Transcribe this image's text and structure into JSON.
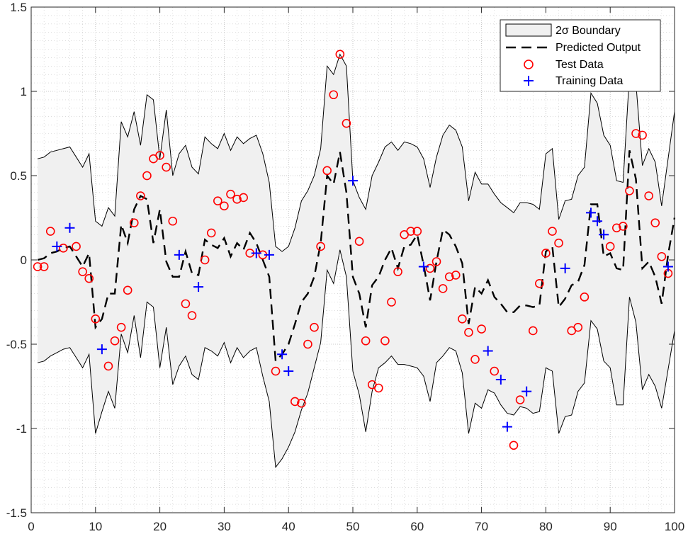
{
  "chart_data": {
    "type": "line",
    "title": "",
    "xlabel": "",
    "ylabel": "",
    "xlim": [
      0,
      100
    ],
    "ylim": [
      -1.5,
      1.5
    ],
    "x_ticks": [
      "0",
      "10",
      "20",
      "30",
      "40",
      "50",
      "60",
      "70",
      "80",
      "90",
      "100"
    ],
    "y_ticks": [
      "1.5",
      "1",
      "0.5",
      "0",
      "-0.5",
      "-1",
      "-1.5"
    ],
    "grid": "major and minor, dotted",
    "legend_position": "top-right",
    "legend": [
      {
        "label": "2σ Boundary"
      },
      {
        "label": "Predicted Output"
      },
      {
        "label": "Test Data"
      },
      {
        "label": "Training Data"
      }
    ],
    "colors": {
      "band_fill": "#f0f0f0",
      "band_edge": "#000000",
      "predicted": "#000000",
      "test": "#ff0000",
      "training": "#0000ff",
      "grid": "#c8c8c8"
    },
    "band": {
      "x": [
        1,
        2,
        3,
        4,
        5,
        6,
        7,
        8,
        9,
        10,
        11,
        12,
        13,
        14,
        15,
        16,
        17,
        18,
        19,
        20,
        21,
        22,
        23,
        24,
        25,
        26,
        27,
        28,
        29,
        30,
        31,
        32,
        33,
        34,
        35,
        36,
        37,
        38,
        39,
        40,
        41,
        42,
        43,
        44,
        45,
        46,
        47,
        48,
        49,
        50,
        51,
        52,
        53,
        54,
        55,
        56,
        57,
        58,
        59,
        60,
        61,
        62,
        63,
        64,
        65,
        66,
        67,
        68,
        69,
        70,
        71,
        72,
        73,
        74,
        75,
        76,
        77,
        78,
        79,
        80,
        81,
        82,
        83,
        84,
        85,
        86,
        87,
        88,
        89,
        90,
        91,
        92,
        93,
        94,
        95,
        96,
        97,
        98,
        99,
        100
      ],
      "upper": [
        0.6,
        0.61,
        0.64,
        0.65,
        0.66,
        0.67,
        0.61,
        0.55,
        0.63,
        0.23,
        0.2,
        0.31,
        0.26,
        0.82,
        0.73,
        0.88,
        0.68,
        0.98,
        0.95,
        0.6,
        0.89,
        0.5,
        0.63,
        0.68,
        0.55,
        0.51,
        0.73,
        0.69,
        0.66,
        0.75,
        0.65,
        0.73,
        0.69,
        0.72,
        0.74,
        0.63,
        0.46,
        0.08,
        0.05,
        0.08,
        0.19,
        0.35,
        0.41,
        0.5,
        0.66,
        1.15,
        1.1,
        1.22,
        1.15,
        0.47,
        0.37,
        0.3,
        0.5,
        0.58,
        0.67,
        0.7,
        0.65,
        0.7,
        0.69,
        0.67,
        0.6,
        0.43,
        0.61,
        0.74,
        0.8,
        0.77,
        0.67,
        0.35,
        0.52,
        0.45,
        0.45,
        0.39,
        0.34,
        0.31,
        0.28,
        0.34,
        0.34,
        0.33,
        0.3,
        0.63,
        0.66,
        0.24,
        0.35,
        0.36,
        0.5,
        0.55,
        0.99,
        0.93,
        0.74,
        0.68,
        0.47,
        0.46,
        1.1,
        1.05,
        0.56,
        0.66,
        0.58,
        0.32,
        0.6,
        0.88
      ],
      "lower": [
        -0.61,
        -0.6,
        -0.57,
        -0.55,
        -0.53,
        -0.52,
        -0.58,
        -0.64,
        -0.56,
        -1.03,
        -0.9,
        -0.78,
        -0.88,
        -0.44,
        -0.55,
        -0.33,
        -0.58,
        -0.25,
        -0.28,
        -0.64,
        -0.4,
        -0.74,
        -0.63,
        -0.57,
        -0.68,
        -0.71,
        -0.52,
        -0.54,
        -0.57,
        -0.49,
        -0.61,
        -0.52,
        -0.58,
        -0.54,
        -0.52,
        -0.69,
        -0.84,
        -1.23,
        -1.18,
        -1.11,
        -1.02,
        -0.89,
        -0.79,
        -0.64,
        -0.49,
        -0.06,
        -0.14,
        0.06,
        -0.1,
        -0.66,
        -0.8,
        -1.02,
        -0.78,
        -0.64,
        -0.61,
        -0.57,
        -0.62,
        -0.62,
        -0.63,
        -0.64,
        -0.69,
        -0.84,
        -0.61,
        -0.57,
        -0.52,
        -0.54,
        -0.67,
        -1.03,
        -0.85,
        -0.88,
        -0.77,
        -0.79,
        -0.86,
        -0.91,
        -0.92,
        -0.87,
        -0.88,
        -0.91,
        -0.9,
        -0.64,
        -0.66,
        -1.03,
        -0.93,
        -0.92,
        -0.78,
        -0.73,
        -0.36,
        -0.41,
        -0.6,
        -0.64,
        -0.86,
        -0.86,
        -0.22,
        -0.37,
        -0.77,
        -0.68,
        -0.75,
        -0.88,
        -0.65,
        -0.42
      ]
    },
    "series": [
      {
        "name": "Predicted Output",
        "x": [
          1,
          2,
          3,
          4,
          5,
          6,
          7,
          8,
          9,
          10,
          11,
          12,
          13,
          14,
          15,
          16,
          17,
          18,
          19,
          20,
          21,
          22,
          23,
          24,
          25,
          26,
          27,
          28,
          29,
          30,
          31,
          32,
          33,
          34,
          35,
          36,
          37,
          38,
          39,
          40,
          41,
          42,
          43,
          44,
          45,
          46,
          47,
          48,
          49,
          50,
          51,
          52,
          53,
          54,
          55,
          56,
          57,
          58,
          59,
          60,
          61,
          62,
          63,
          64,
          65,
          66,
          67,
          68,
          69,
          70,
          71,
          72,
          73,
          74,
          75,
          76,
          77,
          78,
          79,
          80,
          81,
          82,
          83,
          84,
          85,
          86,
          87,
          88,
          89,
          90,
          91,
          92,
          93,
          94,
          95,
          96,
          97,
          98,
          99,
          100
        ],
        "y": [
          0.0,
          0.01,
          0.04,
          0.05,
          0.07,
          0.08,
          0.02,
          -0.04,
          0.04,
          -0.4,
          -0.35,
          -0.2,
          -0.2,
          0.21,
          0.1,
          0.3,
          0.38,
          0.36,
          0.1,
          0.3,
          -0.01,
          -0.1,
          -0.1,
          0.05,
          -0.08,
          -0.09,
          0.12,
          0.09,
          0.07,
          0.13,
          0.02,
          0.1,
          0.06,
          0.16,
          0.1,
          0.0,
          -0.1,
          -0.6,
          -0.56,
          -0.5,
          -0.38,
          -0.25,
          -0.2,
          -0.1,
          0.1,
          0.5,
          0.45,
          0.64,
          0.4,
          -0.1,
          -0.2,
          -0.4,
          -0.15,
          -0.1,
          0.0,
          0.07,
          -0.05,
          0.08,
          0.09,
          0.15,
          -0.03,
          -0.24,
          -0.01,
          0.18,
          0.15,
          0.08,
          -0.02,
          -0.38,
          -0.16,
          -0.2,
          -0.12,
          -0.22,
          -0.26,
          -0.31,
          -0.31,
          -0.27,
          -0.27,
          -0.28,
          -0.27,
          0.05,
          0.08,
          -0.28,
          -0.23,
          -0.15,
          -0.13,
          -0.03,
          0.33,
          0.33,
          0.02,
          0.04,
          -0.05,
          -0.06,
          0.65,
          0.48,
          -0.05,
          -0.01,
          -0.1,
          -0.26,
          0.03,
          0.25
        ]
      },
      {
        "name": "Test Data",
        "x": [
          1,
          2,
          3,
          5,
          7,
          8,
          9,
          10,
          12,
          13,
          14,
          15,
          16,
          17,
          18,
          19,
          20,
          21,
          22,
          24,
          25,
          27,
          28,
          29,
          30,
          31,
          32,
          33,
          34,
          36,
          38,
          41,
          42,
          43,
          44,
          45,
          46,
          47,
          48,
          49,
          51,
          52,
          53,
          54,
          55,
          56,
          57,
          58,
          59,
          60,
          62,
          63,
          64,
          65,
          66,
          67,
          68,
          69,
          70,
          72,
          75,
          76,
          78,
          79,
          80,
          81,
          82,
          84,
          85,
          86,
          90,
          91,
          92,
          93,
          94,
          95,
          96,
          97,
          98,
          99
        ],
        "y": [
          -0.04,
          -0.04,
          0.17,
          0.07,
          0.08,
          -0.07,
          -0.11,
          -0.35,
          -0.63,
          -0.48,
          -0.4,
          -0.18,
          0.22,
          0.38,
          0.5,
          0.6,
          0.62,
          0.55,
          0.23,
          -0.26,
          -0.33,
          0.0,
          0.16,
          0.35,
          0.32,
          0.39,
          0.36,
          0.37,
          0.04,
          0.03,
          -0.66,
          -0.84,
          -0.85,
          -0.5,
          -0.4,
          0.08,
          0.53,
          0.98,
          1.22,
          0.81,
          0.11,
          -0.48,
          -0.74,
          -0.76,
          -0.48,
          -0.25,
          -0.07,
          0.15,
          0.17,
          0.17,
          -0.05,
          -0.01,
          -0.17,
          -0.1,
          -0.09,
          -0.35,
          -0.43,
          -0.59,
          -0.41,
          -0.66,
          -1.1,
          -0.83,
          -0.42,
          -0.14,
          0.04,
          0.17,
          0.1,
          -0.42,
          -0.4,
          -0.22,
          0.08,
          0.19,
          0.2,
          0.41,
          0.75,
          0.74,
          0.38,
          0.22,
          0.02,
          -0.08
        ]
      },
      {
        "name": "Training Data",
        "x": [
          4,
          6,
          11,
          23,
          26,
          35,
          37,
          39,
          40,
          50,
          61,
          71,
          73,
          74,
          77,
          83,
          87,
          88,
          89,
          99
        ],
        "y": [
          0.08,
          0.19,
          -0.53,
          0.03,
          -0.16,
          0.04,
          0.03,
          -0.56,
          -0.66,
          0.47,
          -0.04,
          -0.54,
          -0.71,
          -0.99,
          -0.78,
          -0.05,
          0.28,
          0.23,
          0.15,
          -0.04
        ]
      }
    ]
  }
}
